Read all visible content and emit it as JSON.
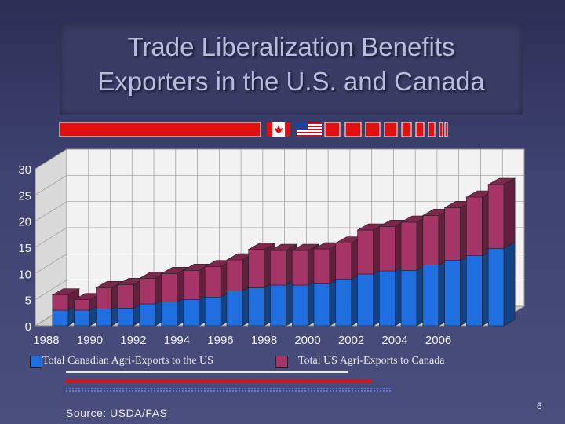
{
  "title": {
    "line1": "Trade Liberalization Benefits",
    "line2": "Exporters in the U.S. and Canada"
  },
  "colors": {
    "canadian": "#1f6fe0",
    "us": "#a53566",
    "accent_red": "#e01010"
  },
  "legend": {
    "canadian_label": "Total Canadian Agri-Exports to the US",
    "us_label": "Total US Agri-Exports to Canada"
  },
  "source": "Source: USDA/FAS",
  "page_number": "6",
  "chart_data": {
    "type": "bar",
    "stacked": true,
    "categories": [
      "1988",
      "1989",
      "1990",
      "1991",
      "1992",
      "1993",
      "1994",
      "1995",
      "1996",
      "1997",
      "1998",
      "1999",
      "2000",
      "2001",
      "2002",
      "2003",
      "2004",
      "2005",
      "2006",
      "2007",
      "2008"
    ],
    "x_tick_labels": [
      "1988",
      "1990",
      "1992",
      "1994",
      "1996",
      "1998",
      "2000",
      "2002",
      "2004",
      "2006"
    ],
    "series": [
      {
        "name": "Total Canadian Agri-Exports to the US",
        "color": "#1f6fe0",
        "values": [
          3.0,
          3.0,
          3.2,
          3.4,
          4.2,
          4.6,
          5.0,
          5.5,
          6.7,
          7.3,
          7.8,
          7.8,
          8.0,
          8.9,
          9.9,
          10.5,
          10.6,
          11.6,
          12.5,
          13.4,
          14.8
        ]
      },
      {
        "name": "Total US Agri-Exports to Canada",
        "color": "#a53566",
        "values": [
          2.9,
          2.0,
          4.1,
          4.5,
          4.9,
          5.4,
          5.6,
          5.8,
          5.9,
          7.3,
          6.6,
          6.6,
          6.7,
          6.9,
          8.4,
          8.5,
          9.2,
          9.5,
          10.1,
          11.2,
          12.2
        ]
      }
    ],
    "ylim": [
      0,
      30
    ],
    "y_ticks": [
      "0",
      "5",
      "10",
      "15",
      "20",
      "25",
      "30"
    ],
    "grid": true
  }
}
